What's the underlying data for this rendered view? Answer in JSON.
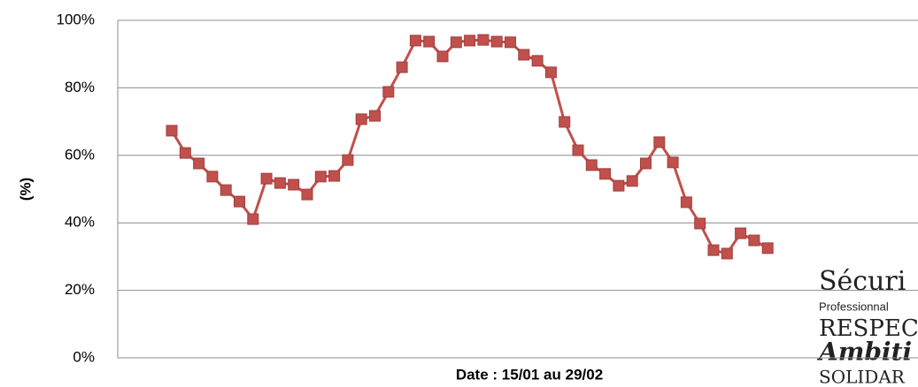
{
  "chart_data": {
    "type": "line",
    "xlabel": "Date : 15/01 au 29/02",
    "ylabel": "(%)",
    "categories": [
      null,
      null,
      null,
      null,
      null,
      null,
      null,
      null,
      null,
      null,
      null,
      null,
      null,
      null,
      null,
      null,
      null,
      null,
      null,
      null,
      null,
      null,
      null,
      null,
      null,
      null,
      null,
      null,
      null,
      null,
      null,
      null,
      null,
      null,
      null,
      null,
      null,
      null,
      null,
      null,
      null,
      null,
      null,
      null,
      null
    ],
    "series": [
      {
        "color": "#c0504d",
        "values": [
          67.3,
          60.7,
          57.6,
          53.7,
          49.7,
          46.3,
          41.1,
          53.1,
          51.8,
          51.3,
          48.4,
          53.7,
          53.9,
          58.6,
          70.7,
          71.7,
          78.8,
          86.1,
          94.0,
          93.7,
          89.3,
          93.5,
          94.0,
          94.2,
          93.7,
          93.5,
          89.8,
          88.0,
          84.6,
          69.9,
          61.5,
          57.1,
          54.5,
          51.0,
          52.4,
          57.6,
          63.9,
          57.9,
          46.1,
          39.8,
          31.9,
          30.9,
          36.9,
          34.8,
          32.5
        ]
      }
    ],
    "ylim": [
      0,
      100
    ],
    "yticks": [
      {
        "value": 0,
        "label": "0%"
      },
      {
        "value": 20,
        "label": "20%"
      },
      {
        "value": 40,
        "label": "40%"
      },
      {
        "value": 60,
        "label": "60%"
      },
      {
        "value": 80,
        "label": "80%"
      },
      {
        "value": 100,
        "label": "100%"
      }
    ],
    "grid": true
  },
  "logo": {
    "lines": [
      "Sécuri",
      "Professionnal",
      "RESPEC",
      "Ambiti",
      "SOLIDAR"
    ]
  }
}
